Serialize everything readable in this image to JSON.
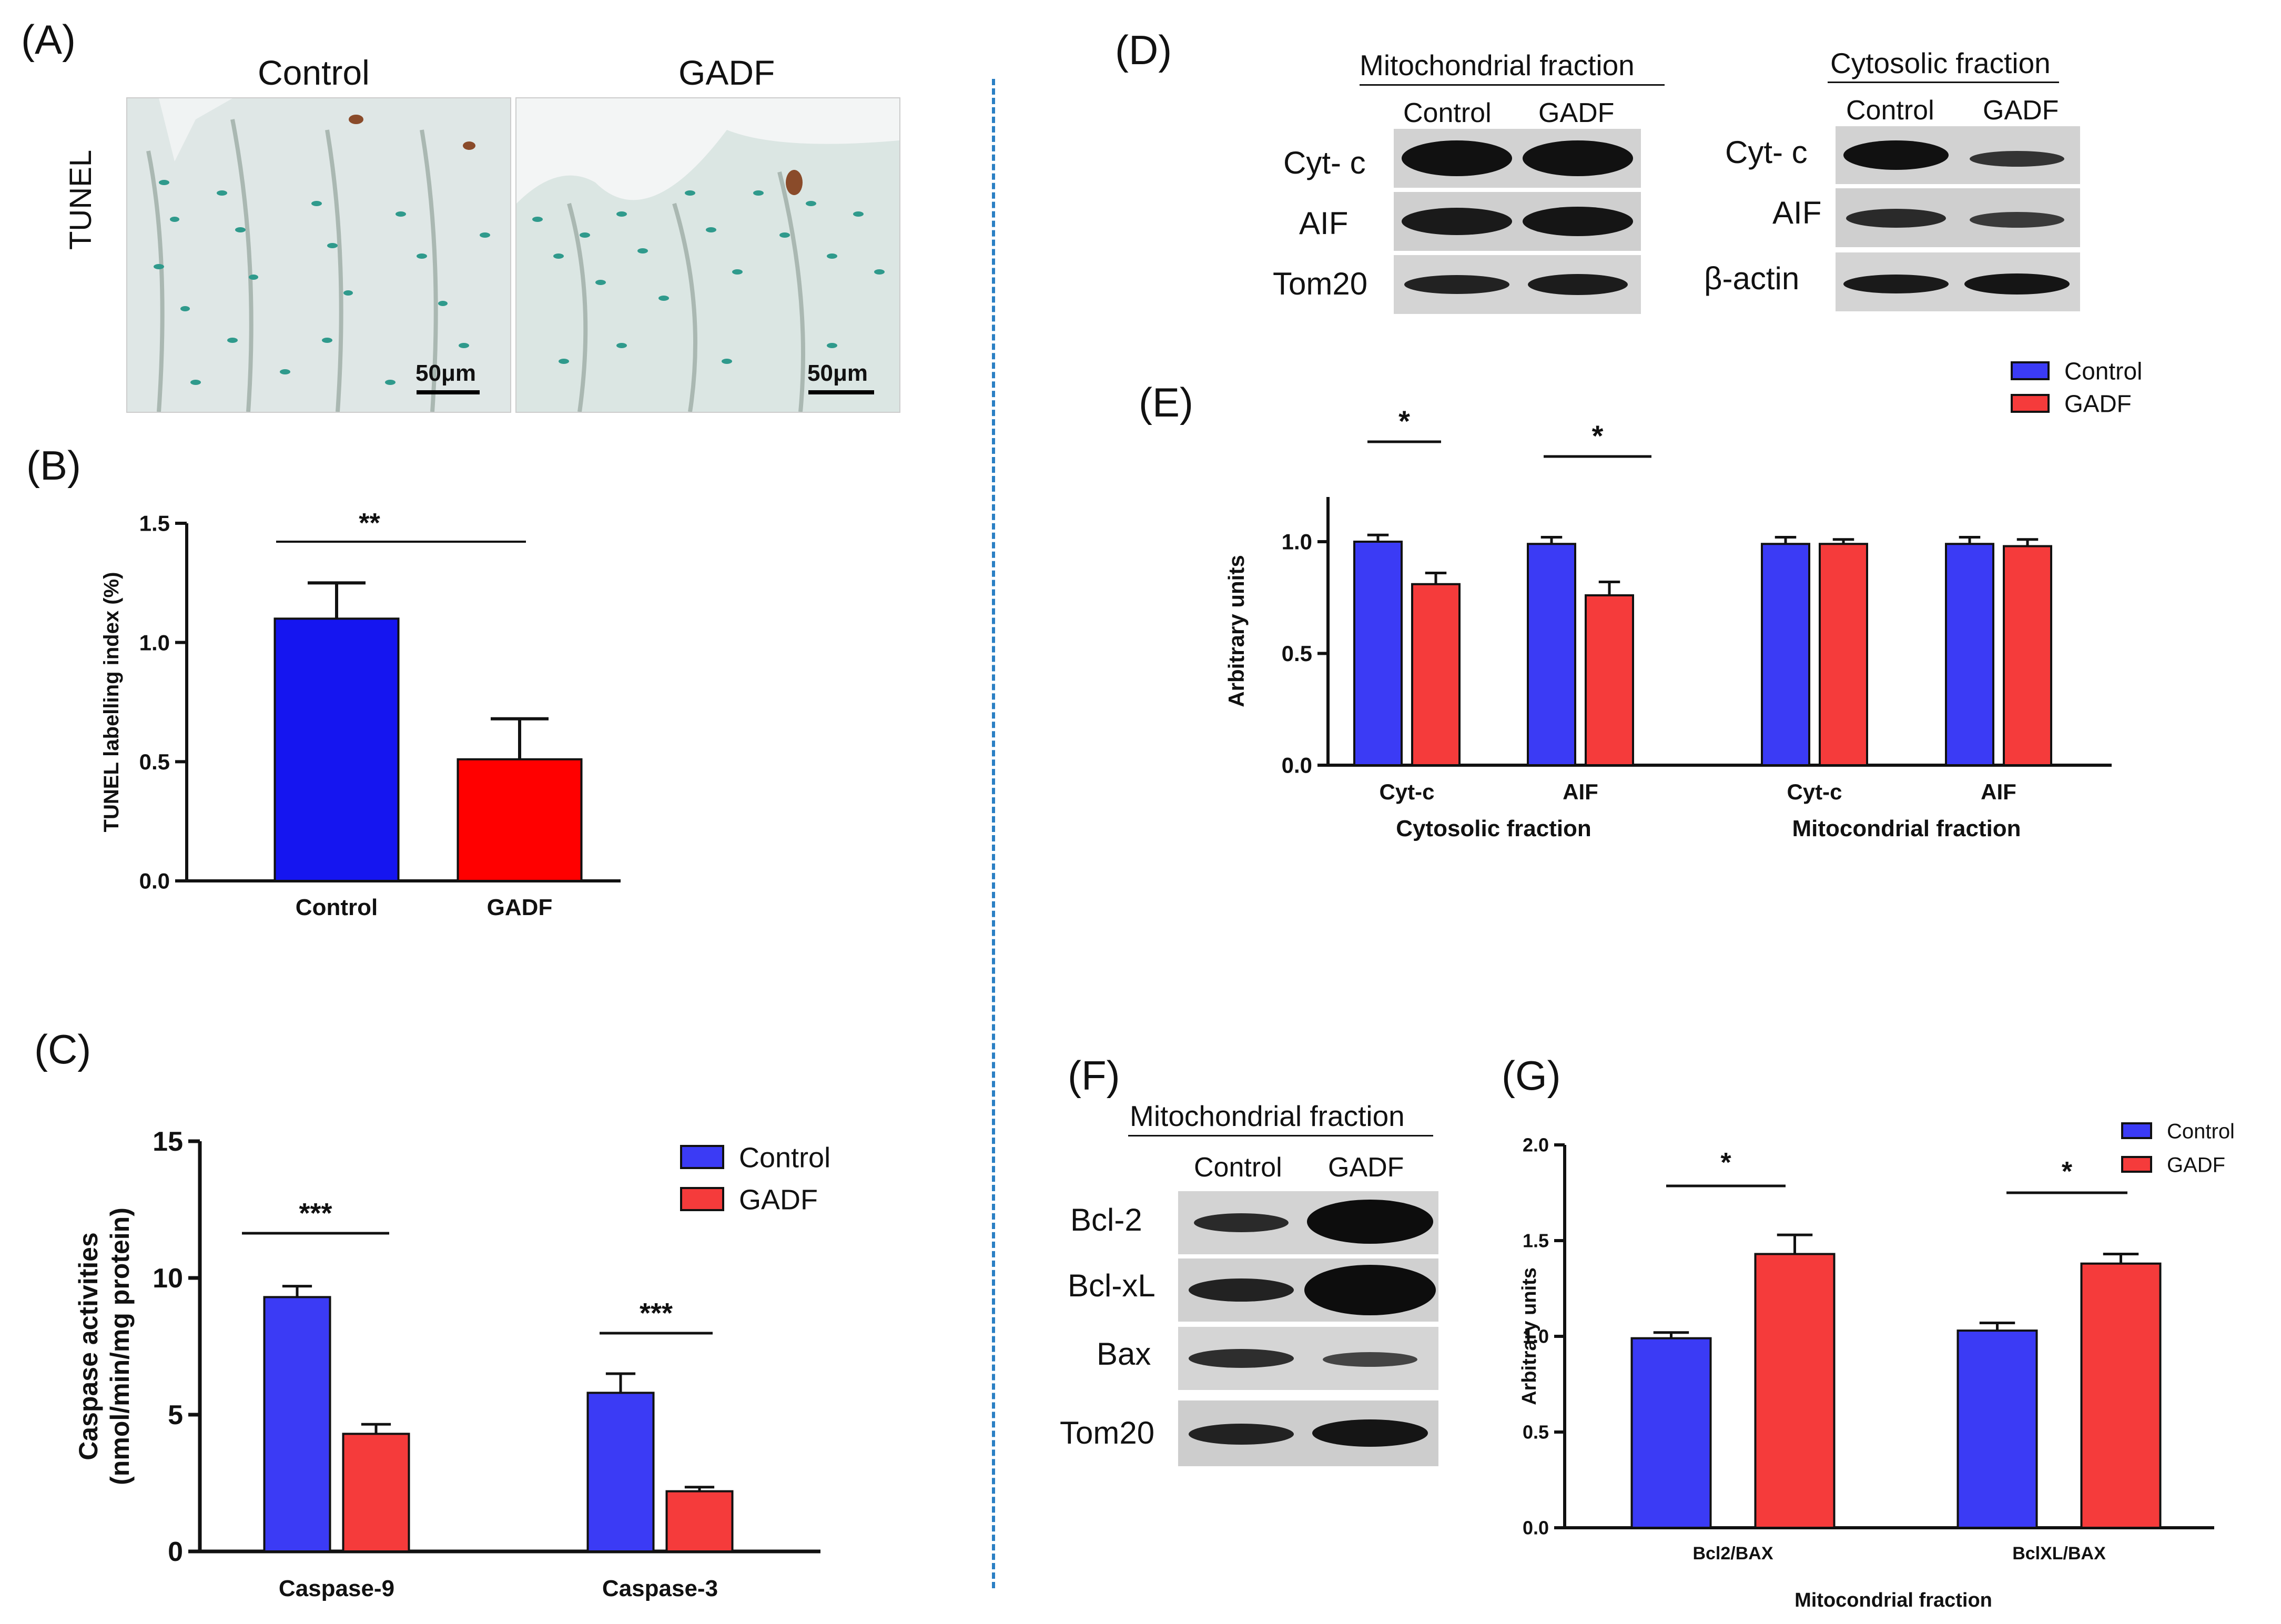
{
  "panel_labels": {
    "A": "(A)",
    "B": "(B)",
    "C": "(C)",
    "D": "(D)",
    "E": "(E)",
    "F": "(F)",
    "G": "(G)"
  },
  "panel_a": {
    "control_label": "Control",
    "gadf_label": "GADF",
    "row_label": "TUNEL",
    "scale_bar_left": "50μm",
    "scale_bar_right": "50μm"
  },
  "panel_d": {
    "mito_header": "Mitochondrial  fraction",
    "cyto_header": "Cytosolic fraction",
    "mito_cols": [
      "Control",
      "GADF"
    ],
    "cyto_cols": [
      "Control",
      "GADF"
    ],
    "mito_rows": [
      "Cyt- c",
      "AIF",
      "Tom20"
    ],
    "cyto_rows": [
      "Cyt- c",
      "AIF",
      "β-actin"
    ]
  },
  "panel_f": {
    "header": "Mitochondrial  fraction",
    "cols": [
      "Control",
      "GADF"
    ],
    "rows": [
      "Bcl-2",
      "Bcl-xL",
      "Bax",
      "Tom20"
    ]
  },
  "colors": {
    "control": "#3b3bf5",
    "gadf": "#f53b3b",
    "bar_b_control": "#1515f0",
    "bar_b_gadf": "#ff0000",
    "divider": "#2a7fc4"
  },
  "chart_data": [
    {
      "id": "B",
      "type": "bar",
      "categories": [
        "Control",
        "GADF"
      ],
      "values": [
        1.1,
        0.51
      ],
      "errors": [
        0.15,
        0.17
      ],
      "ylabel": "TUNEL labelling index  (%)",
      "ylim": [
        0,
        1.5
      ],
      "yticks": [
        "0.0",
        "0.5",
        "1.0",
        "1.5"
      ],
      "significance": [
        "**"
      ]
    },
    {
      "id": "C",
      "type": "bar",
      "categories": [
        "Caspase-9",
        "Caspase-3"
      ],
      "series": [
        {
          "name": "Control",
          "values": [
            9.3,
            5.8
          ],
          "errors": [
            0.4,
            0.7
          ]
        },
        {
          "name": "GADF",
          "values": [
            4.3,
            2.2
          ],
          "errors": [
            0.35,
            0.15
          ]
        }
      ],
      "ylabel_line1": "Caspase activities",
      "ylabel_line2": "(nmol/min/mg protein)",
      "ylim": [
        0,
        15
      ],
      "yticks": [
        "0",
        "5",
        "10",
        "15"
      ],
      "significance": [
        "***",
        "***"
      ],
      "legend": [
        "Control",
        "GADF"
      ]
    },
    {
      "id": "E",
      "type": "bar",
      "categories": [
        "Cyt-c",
        "AIF",
        "Cyt-c",
        "AIF"
      ],
      "groups": [
        "Cytosolic fraction",
        "Mitocondrial fraction"
      ],
      "series": [
        {
          "name": "Control",
          "values": [
            1.0,
            0.99,
            0.99,
            0.99
          ],
          "errors": [
            0.03,
            0.03,
            0.03,
            0.03
          ]
        },
        {
          "name": "GADF",
          "values": [
            0.81,
            0.76,
            0.99,
            0.98
          ],
          "errors": [
            0.05,
            0.06,
            0.02,
            0.03
          ]
        }
      ],
      "ylabel": "Arbitrary units",
      "ylim": [
        0,
        1.2
      ],
      "yticks": [
        "0.0",
        "0.5",
        "1.0"
      ],
      "significance": [
        "*",
        "*"
      ],
      "legend": [
        "Control",
        "GADF"
      ]
    },
    {
      "id": "G",
      "type": "bar",
      "categories": [
        "Bcl2/BAX",
        "BclXL/BAX"
      ],
      "series": [
        {
          "name": "Control",
          "values": [
            0.99,
            1.03
          ],
          "errors": [
            0.03,
            0.04
          ]
        },
        {
          "name": "GADF",
          "values": [
            1.43,
            1.38
          ],
          "errors": [
            0.1,
            0.05
          ]
        }
      ],
      "ylabel": "Arbitrary units",
      "xlabel": "Mitocondrial fraction",
      "ylim": [
        0,
        2.0
      ],
      "yticks": [
        "0.0",
        "0.5",
        "1.0",
        "1.5",
        "2.0"
      ],
      "significance": [
        "*",
        "*"
      ],
      "legend": [
        "Control",
        "GADF"
      ]
    }
  ]
}
